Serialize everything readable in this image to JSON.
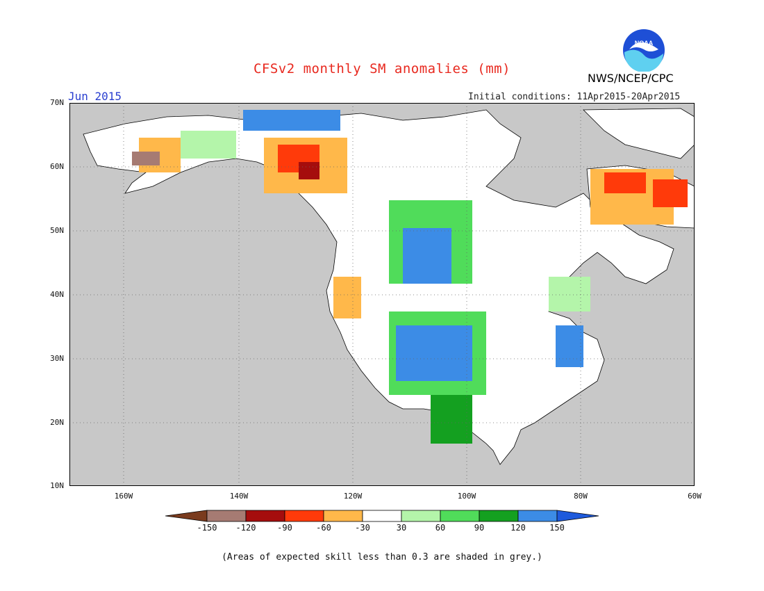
{
  "header": {
    "title": "CFSv2 monthly SM anomalies (mm)",
    "month": "Jun 2015",
    "initial_conditions": "Initial conditions: 11Apr2015-20Apr2015",
    "agency": "NWS/NCEP/CPC",
    "logo_text": "NOAA"
  },
  "map": {
    "lat_ticks": [
      "70N",
      "60N",
      "50N",
      "40N",
      "30N",
      "20N",
      "10N"
    ],
    "lon_ticks": [
      "160W",
      "140W",
      "120W",
      "100W",
      "80W",
      "60W"
    ],
    "ocean_color": "#c8c8c8",
    "land_color": "#ffffff"
  },
  "colorbar": {
    "labels": [
      "-150",
      "-120",
      "-90",
      "-60",
      "-30",
      "30",
      "60",
      "90",
      "120",
      "150"
    ],
    "colors": [
      "#7a3b1e",
      "#a67b73",
      "#a50d0d",
      "#ff3a0a",
      "#ffb84a",
      "#ffffff",
      "#b4f5aa",
      "#50dc5a",
      "#14a020",
      "#3c8ce6",
      "#1e5adc"
    ]
  },
  "footer": {
    "note": "(Areas of expected skill less than 0.3 are shaded in grey.)"
  }
}
